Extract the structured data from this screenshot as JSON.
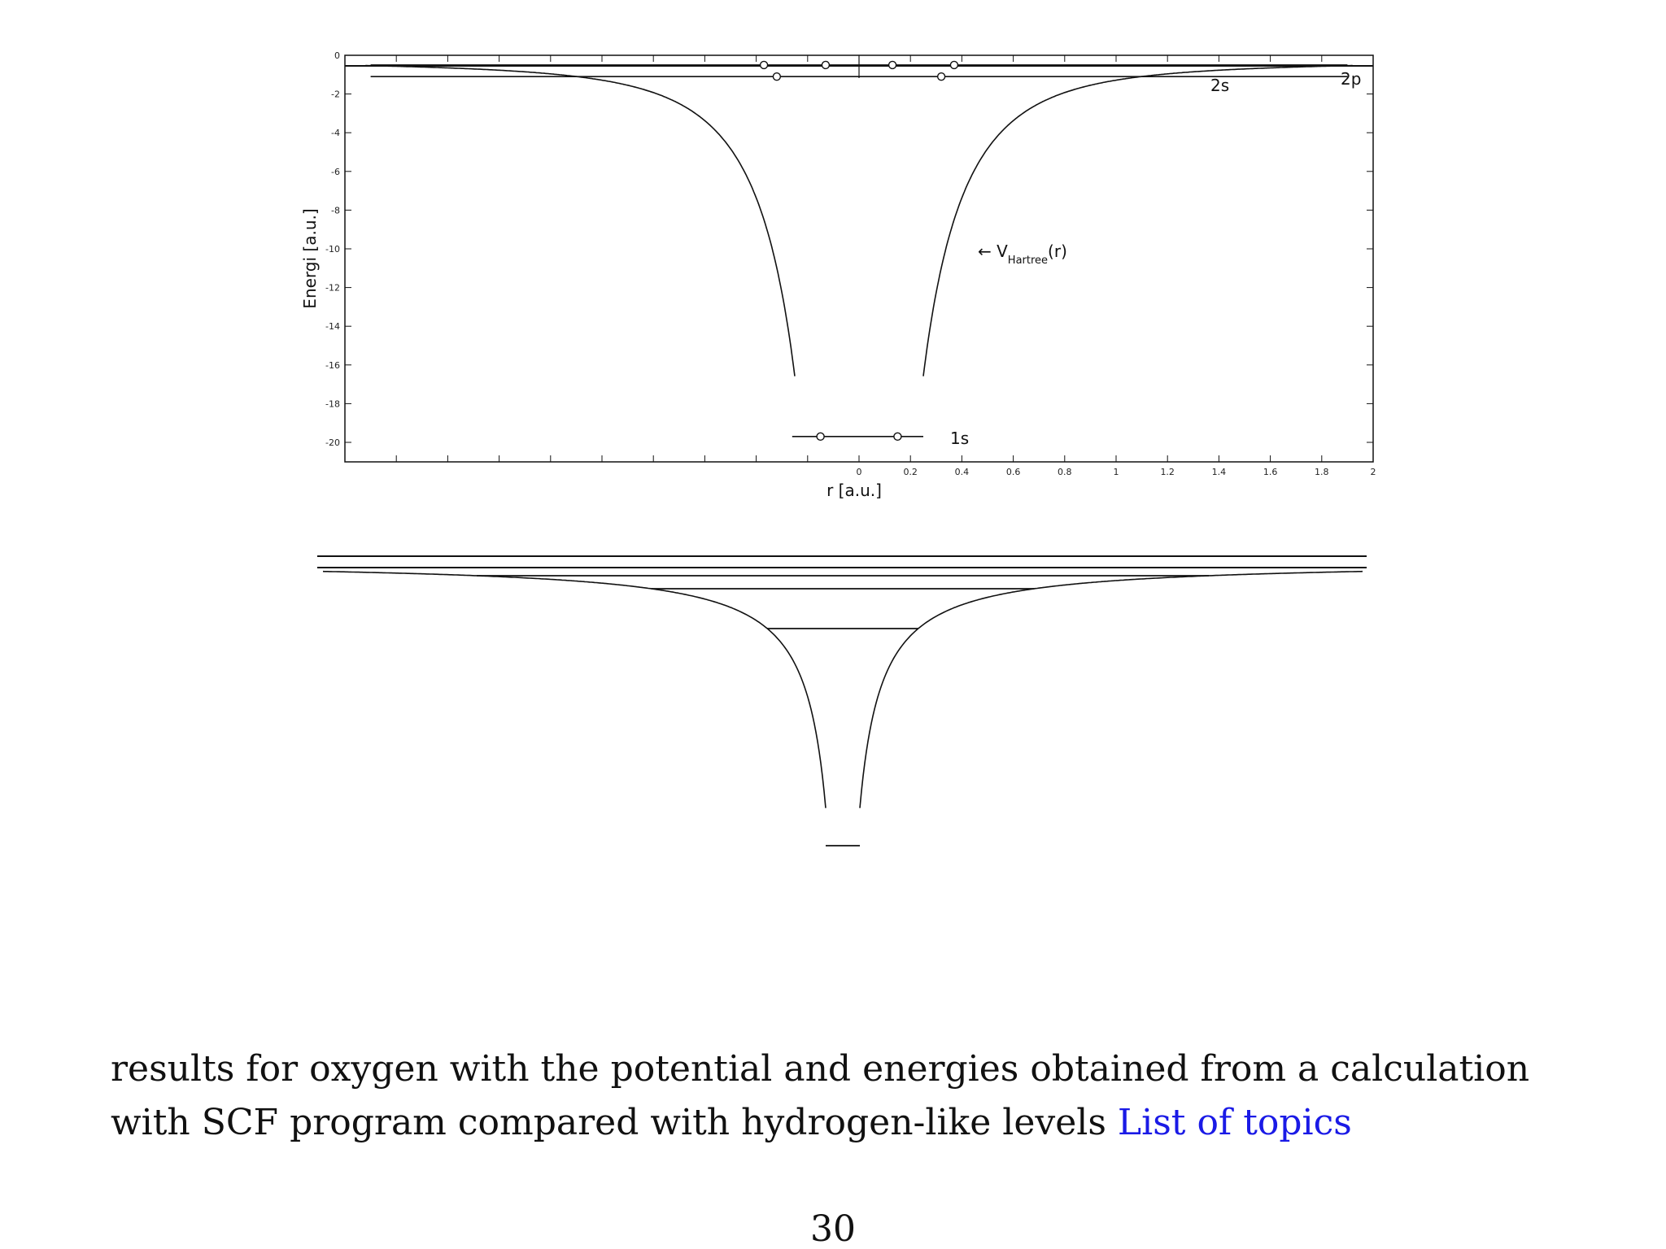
{
  "chart_data": [
    {
      "type": "line",
      "xlabel": "r [a.u.]",
      "ylabel": "Energi [a.u.]",
      "xlim": [
        -2,
        2
      ],
      "ylim": [
        -21,
        0.5
      ],
      "x_ticks": [
        "0",
        "0.2",
        "0.4",
        "0.6",
        "0.8",
        "1",
        "1.2",
        "1.4",
        "1.6",
        "1.8",
        "2"
      ],
      "y_ticks": [
        "0",
        "-2",
        "-4",
        "-6",
        "-8",
        "-10",
        "-12",
        "-14",
        "-16",
        "-18",
        "-20"
      ],
      "potential_label": "← V",
      "potential_label_sub": "Hartree",
      "potential_label_tail": "(r)",
      "levels": [
        {
          "label": "1s",
          "energy": -19.7,
          "x_range": [
            -0.26,
            0.25
          ],
          "electrons_x": [
            -0.15,
            0.15
          ]
        },
        {
          "label": "2s",
          "energy": -1.1,
          "x_range": [
            -1.9,
            1.9
          ],
          "electrons_x": [
            -0.32,
            0.32
          ]
        },
        {
          "label": "2p",
          "energy": -0.5,
          "x_range": [
            -1.9,
            1.9
          ],
          "electrons_x": [
            -0.37,
            -0.13,
            0.13,
            0.37
          ]
        }
      ],
      "grid": false
    }
  ],
  "caption": {
    "line1": "results for oxygen with the potential and energies obtained from a calculation",
    "line2": "with SCF program compared with hydrogen-like levels",
    "link": "List of topics"
  },
  "page_number": "30"
}
